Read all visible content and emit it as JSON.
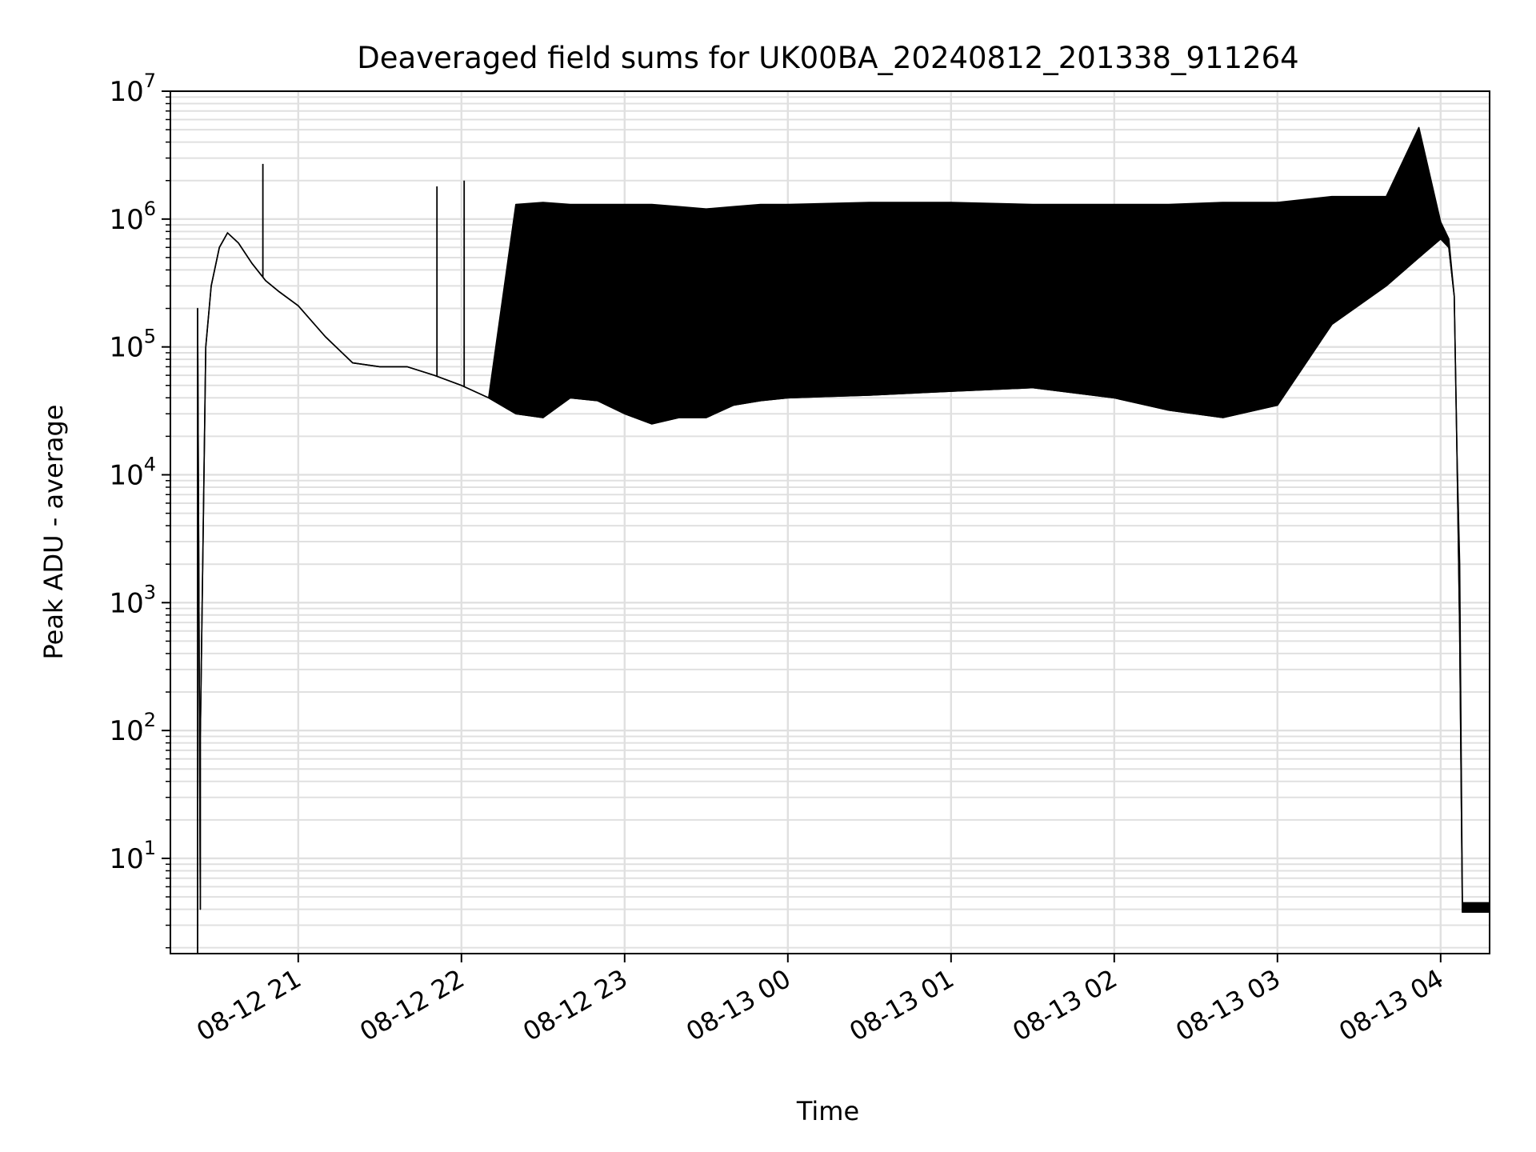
{
  "chart_data": {
    "type": "line",
    "title": "Deaveraged field sums for UK00BA_20240812_201338_911264",
    "xlabel": "Time",
    "ylabel": "Peak ADU - average",
    "y_scale": "log",
    "ylim": [
      1.8,
      10000000
    ],
    "xlim": [
      "2024-08-12 20:13",
      "2024-08-13 04:18"
    ],
    "grid": true,
    "line_color": "#000000",
    "grid_color": "#e0e0e0",
    "x_ticks": [
      {
        "t": "2024-08-12 21:00",
        "label": "08-12 21"
      },
      {
        "t": "2024-08-12 22:00",
        "label": "08-12 22"
      },
      {
        "t": "2024-08-12 23:00",
        "label": "08-12 23"
      },
      {
        "t": "2024-08-13 00:00",
        "label": "08-13 00"
      },
      {
        "t": "2024-08-13 01:00",
        "label": "08-13 01"
      },
      {
        "t": "2024-08-13 02:00",
        "label": "08-13 02"
      },
      {
        "t": "2024-08-13 03:00",
        "label": "08-13 03"
      },
      {
        "t": "2024-08-13 04:00",
        "label": "08-13 04"
      }
    ],
    "y_ticks": [
      {
        "value": 10,
        "base": "10",
        "exp": "1"
      },
      {
        "value": 100,
        "base": "10",
        "exp": "2"
      },
      {
        "value": 1000,
        "base": "10",
        "exp": "3"
      },
      {
        "value": 10000,
        "base": "10",
        "exp": "4"
      },
      {
        "value": 100000,
        "base": "10",
        "exp": "5"
      },
      {
        "value": 1000000,
        "base": "10",
        "exp": "6"
      },
      {
        "value": 10000000,
        "base": "10",
        "exp": "7"
      }
    ],
    "series": [
      {
        "x": [
          "2024-08-12 20:23",
          "2024-08-12 20:23",
          "2024-08-12 20:24",
          "2024-08-12 20:24",
          "2024-08-12 20:25",
          "2024-08-12 20:26",
          "2024-08-12 20:28",
          "2024-08-12 20:31",
          "2024-08-12 20:34",
          "2024-08-12 20:38",
          "2024-08-12 20:43",
          "2024-08-12 20:48",
          "2024-08-12 20:53",
          "2024-08-12 21:00",
          "2024-08-12 21:10",
          "2024-08-12 21:20",
          "2024-08-12 21:30",
          "2024-08-12 21:40",
          "2024-08-12 21:50",
          "2024-08-12 22:00",
          "2024-08-12 22:10",
          "2024-08-12 22:20",
          "2024-08-12 22:30",
          "2024-08-12 22:40",
          "2024-08-12 22:50",
          "2024-08-12 23:00",
          "2024-08-12 23:10",
          "2024-08-12 23:20",
          "2024-08-12 23:30",
          "2024-08-12 23:40",
          "2024-08-12 23:50",
          "2024-08-13 00:00",
          "2024-08-13 00:30",
          "2024-08-13 01:00",
          "2024-08-13 01:30",
          "2024-08-13 02:00",
          "2024-08-13 02:20",
          "2024-08-13 02:40",
          "2024-08-13 03:00",
          "2024-08-13 03:20",
          "2024-08-13 03:40",
          "2024-08-13 03:52",
          "2024-08-13 04:00",
          "2024-08-13 04:03",
          "2024-08-13 04:05",
          "2024-08-13 04:06",
          "2024-08-13 04:07",
          "2024-08-13 04:08",
          "2024-08-13 04:18"
        ],
        "upper": [
          1.8,
          200000,
          4,
          90,
          3000,
          100000,
          300000,
          600000,
          780000,
          650000,
          450000,
          330000,
          270000,
          210000,
          120000,
          75000,
          70000,
          70000,
          60000,
          50000,
          40000,
          1300000,
          1350000,
          1300000,
          1300000,
          1300000,
          1300000,
          1250000,
          1200000,
          1250000,
          1300000,
          1300000,
          1350000,
          1350000,
          1300000,
          1300000,
          1300000,
          1350000,
          1350000,
          1500000,
          1500000,
          5200000,
          950000,
          700000,
          250000,
          15000,
          2000,
          4.5,
          4.5
        ],
        "lower": [
          1.8,
          200000,
          4,
          90,
          3000,
          100000,
          300000,
          600000,
          780000,
          650000,
          450000,
          330000,
          270000,
          210000,
          120000,
          75000,
          70000,
          70000,
          60000,
          50000,
          40000,
          30000,
          28000,
          40000,
          38000,
          30000,
          25000,
          28000,
          28000,
          35000,
          38000,
          40000,
          42000,
          45000,
          48000,
          40000,
          32000,
          28000,
          35000,
          150000,
          300000,
          500000,
          700000,
          600000,
          250000,
          15000,
          600,
          3.8,
          3.8
        ],
        "spikes": [
          {
            "t": "2024-08-12 20:47",
            "value": 2700000
          },
          {
            "t": "2024-08-12 21:51",
            "value": 1800000
          },
          {
            "t": "2024-08-12 22:01",
            "value": 2000000
          },
          {
            "t": "2024-08-13 03:52",
            "value": 5200000
          }
        ]
      }
    ]
  }
}
